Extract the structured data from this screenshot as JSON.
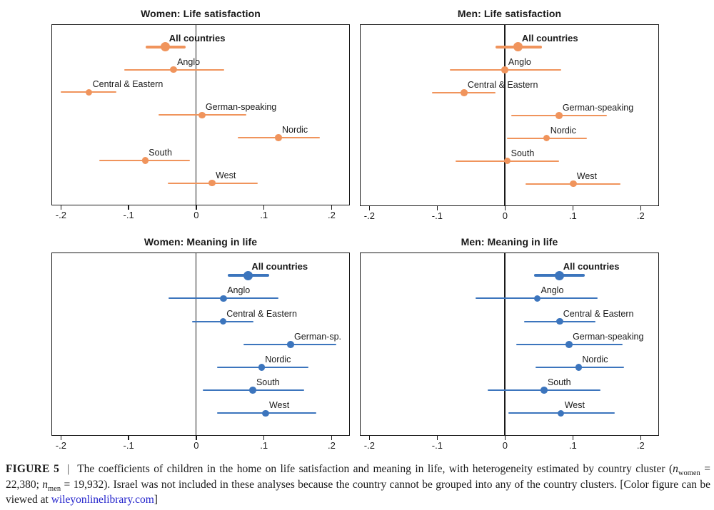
{
  "chart_data": [
    {
      "type": "scatter",
      "variant": "coefficient-forest-plot",
      "title": "Women: Life satisfaction",
      "color": "#F0945C",
      "xlim": [
        -0.2125,
        0.2265
      ],
      "x_ticks": [
        -0.2,
        -0.1,
        0,
        0.1,
        0.2
      ],
      "x_tick_labels": [
        "-.2",
        "-.1",
        "0",
        ".1",
        ".2"
      ],
      "zero_line": 0,
      "grid": false,
      "points": [
        {
          "label": "All countries",
          "value": -0.045,
          "ci": [
            -0.074,
            -0.015
          ],
          "emphasis": true
        },
        {
          "label": "Anglo",
          "value": -0.033,
          "ci": [
            -0.106,
            0.042
          ],
          "emphasis": false
        },
        {
          "label": "Central & Eastern",
          "value": -0.158,
          "ci": [
            -0.2,
            -0.117
          ],
          "emphasis": false
        },
        {
          "label": "German-speaking",
          "value": 0.009,
          "ci": [
            -0.055,
            0.075
          ],
          "emphasis": false
        },
        {
          "label": "Nordic",
          "value": 0.122,
          "ci": [
            0.062,
            0.183
          ],
          "emphasis": false
        },
        {
          "label": "South",
          "value": -0.075,
          "ci": [
            -0.143,
            -0.009
          ],
          "emphasis": false
        },
        {
          "label": "West",
          "value": 0.024,
          "ci": [
            -0.042,
            0.091
          ],
          "emphasis": false
        }
      ]
    },
    {
      "type": "scatter",
      "variant": "coefficient-forest-plot",
      "title": "Men: Life satisfaction",
      "color": "#F0945C",
      "xlim": [
        -0.2125,
        0.2265
      ],
      "x_ticks": [
        -0.2,
        -0.1,
        0,
        0.1,
        0.2
      ],
      "x_tick_labels": [
        "-.2",
        "-.1",
        "0",
        ".1",
        ".2"
      ],
      "zero_line": 0,
      "grid": false,
      "points": [
        {
          "label": "All countries",
          "value": 0.02,
          "ci": [
            -0.014,
            0.055
          ],
          "emphasis": true
        },
        {
          "label": "Anglo",
          "value": 0.0,
          "ci": [
            -0.081,
            0.083
          ],
          "emphasis": false
        },
        {
          "label": "Central & Eastern",
          "value": -0.06,
          "ci": [
            -0.107,
            -0.013
          ],
          "emphasis": false
        },
        {
          "label": "German-speaking",
          "value": 0.08,
          "ci": [
            0.01,
            0.151
          ],
          "emphasis": false
        },
        {
          "label": "Nordic",
          "value": 0.062,
          "ci": [
            0.003,
            0.121
          ],
          "emphasis": false
        },
        {
          "label": "South",
          "value": 0.004,
          "ci": [
            -0.072,
            0.08
          ],
          "emphasis": false
        },
        {
          "label": "West",
          "value": 0.101,
          "ci": [
            0.031,
            0.171
          ],
          "emphasis": false
        }
      ]
    },
    {
      "type": "scatter",
      "variant": "coefficient-forest-plot",
      "title": "Women: Meaning in life",
      "color": "#3C75BD",
      "xlim": [
        -0.2125,
        0.2265
      ],
      "x_ticks": [
        -0.2,
        -0.1,
        0,
        0.1,
        0.2
      ],
      "x_tick_labels": [
        "-.2",
        "-.1",
        "0",
        ".1",
        ".2"
      ],
      "zero_line": 0,
      "grid": false,
      "points": [
        {
          "label": "All countries",
          "value": 0.077,
          "ci": [
            0.047,
            0.108
          ],
          "emphasis": true
        },
        {
          "label": "Anglo",
          "value": 0.041,
          "ci": [
            -0.041,
            0.122
          ],
          "emphasis": false
        },
        {
          "label": "Central & Eastern",
          "value": 0.04,
          "ci": [
            -0.006,
            0.085
          ],
          "emphasis": false
        },
        {
          "label": "German-sp.",
          "value": 0.14,
          "ci": [
            0.07,
            0.208
          ],
          "emphasis": false
        },
        {
          "label": "Nordic",
          "value": 0.097,
          "ci": [
            0.031,
            0.166
          ],
          "emphasis": false
        },
        {
          "label": "South",
          "value": 0.084,
          "ci": [
            0.01,
            0.16
          ],
          "emphasis": false
        },
        {
          "label": "West",
          "value": 0.103,
          "ci": [
            0.031,
            0.178
          ],
          "emphasis": false
        }
      ]
    },
    {
      "type": "scatter",
      "variant": "coefficient-forest-plot",
      "title": "Men: Meaning in life",
      "color": "#3C75BD",
      "xlim": [
        -0.2125,
        0.2265
      ],
      "x_ticks": [
        -0.2,
        -0.1,
        0,
        0.1,
        0.2
      ],
      "x_tick_labels": [
        "-.2",
        "-.1",
        "0",
        ".1",
        ".2"
      ],
      "zero_line": 0,
      "grid": false,
      "points": [
        {
          "label": "All countries",
          "value": 0.081,
          "ci": [
            0.043,
            0.118
          ],
          "emphasis": true
        },
        {
          "label": "Anglo",
          "value": 0.048,
          "ci": [
            -0.043,
            0.137
          ],
          "emphasis": false
        },
        {
          "label": "Central & Eastern",
          "value": 0.081,
          "ci": [
            0.029,
            0.134
          ],
          "emphasis": false
        },
        {
          "label": "German-speaking",
          "value": 0.095,
          "ci": [
            0.017,
            0.174
          ],
          "emphasis": false
        },
        {
          "label": "Nordic",
          "value": 0.109,
          "ci": [
            0.045,
            0.176
          ],
          "emphasis": false
        },
        {
          "label": "South",
          "value": 0.058,
          "ci": [
            -0.025,
            0.141
          ],
          "emphasis": false
        },
        {
          "label": "West",
          "value": 0.083,
          "ci": [
            0.005,
            0.162
          ],
          "emphasis": false
        }
      ]
    }
  ],
  "caption": {
    "figure_label": "FIGURE 5",
    "separator": "|",
    "body_1": "The coefficients of children in the home on life satisfaction and meaning in life, with heterogeneity estimated by country cluster (",
    "n_women_var": "n",
    "n_women_sub": "women",
    "n_women_val": " = 22,380; ",
    "n_men_var": "n",
    "n_men_sub": "men",
    "n_men_val": " = 19,932). ",
    "body_2": "Israel was not included in these analyses because the country cannot be grouped into any of the country clusters. [Color figure can be viewed at ",
    "link_text": "wileyonlinelibrary.com",
    "body_3": "]"
  }
}
